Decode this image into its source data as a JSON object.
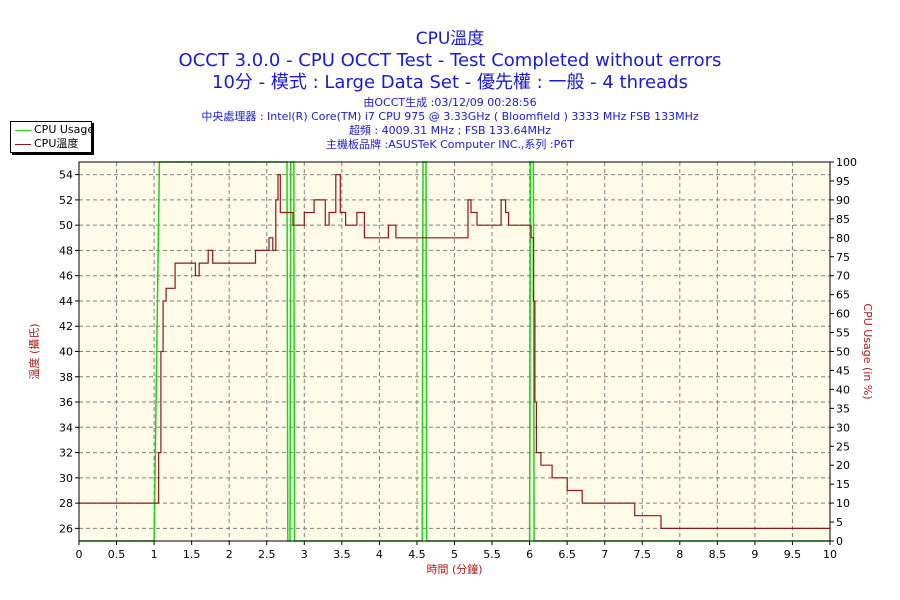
{
  "header": {
    "title": "CPU溫度",
    "subtitle1": "OCCT 3.0.0 - CPU OCCT Test - Test Completed without errors",
    "subtitle2": "10分 - 模式 : Large Data Set - 優先權 : 一般 - 4 threads",
    "info": [
      "由OCCT生成 :03/12/09 00:28:56",
      "中央處理器 : Intel(R) Core(TM) i7 CPU 975 @ 3.33GHz ( Bloomfield ) 3333 MHz FSB 133MHz",
      "超頻 : 4009.31 MHz ; FSB 133.64MHz",
      "主機板品牌 :ASUSTeK Computer INC.,系列 :P6T"
    ]
  },
  "colors": {
    "title": "#1a1ad0",
    "plot_bg": "#fffbe8",
    "temp_line": "#8b1a1a",
    "usage_line": "#1ed21e",
    "axis_title": "#aa1d1d",
    "grid": "#808080"
  },
  "chart_data": {
    "type": "line",
    "xlabel": "時間 (分鐘)",
    "ylabel_left": "溫度 (攝氏)",
    "ylabel_right": "CPU Usage (in %)",
    "xlim": [
      0,
      10
    ],
    "ylim_left": [
      25,
      55
    ],
    "ylim_right": [
      0,
      100
    ],
    "x_ticks": [
      "0",
      "0.5",
      "1",
      "1.5",
      "2",
      "2.5",
      "3",
      "3.5",
      "4",
      "4.5",
      "5",
      "5.5",
      "6",
      "6.5",
      "7",
      "7.5",
      "8",
      "8.5",
      "9",
      "9.5",
      "10"
    ],
    "y_left_ticks": [
      "26",
      "28",
      "30",
      "32",
      "34",
      "36",
      "38",
      "40",
      "42",
      "44",
      "46",
      "48",
      "50",
      "52",
      "54"
    ],
    "y_right_ticks": [
      "0",
      "5",
      "10",
      "15",
      "20",
      "25",
      "30",
      "35",
      "40",
      "45",
      "50",
      "55",
      "60",
      "65",
      "70",
      "75",
      "80",
      "85",
      "90",
      "95",
      "100"
    ],
    "grid": true,
    "legend_position": "top-left",
    "series": [
      {
        "name": "CPU Usage",
        "axis": "right",
        "x": [
          0,
          1.0,
          1.07,
          1.08,
          2.77,
          2.78,
          2.81,
          2.82,
          2.86,
          2.87,
          4.57,
          4.58,
          4.62,
          4.63,
          6.0,
          6.01,
          6.05,
          6.06,
          10
        ],
        "y": [
          0,
          0,
          100,
          100,
          100,
          0,
          0,
          100,
          100,
          0,
          0,
          100,
          100,
          0,
          0,
          100,
          100,
          0,
          0
        ]
      },
      {
        "name": "CPU溫度",
        "axis": "left",
        "x": [
          0,
          1.05,
          1.06,
          1.09,
          1.12,
          1.16,
          1.2,
          1.28,
          1.35,
          1.55,
          1.6,
          1.65,
          1.72,
          1.78,
          2.25,
          2.35,
          2.45,
          2.53,
          2.58,
          2.62,
          2.65,
          2.68,
          2.72,
          2.85,
          2.9,
          3.0,
          3.1,
          3.13,
          3.22,
          3.28,
          3.33,
          3.42,
          3.48,
          3.55,
          3.6,
          3.7,
          3.8,
          3.85,
          4.12,
          4.18,
          4.22,
          4.25,
          5.12,
          5.18,
          5.22,
          5.3,
          5.32,
          5.58,
          5.62,
          5.68,
          5.72,
          6.02,
          6.05,
          6.07,
          6.09,
          6.15,
          6.3,
          6.5,
          6.7,
          6.75,
          7.35,
          7.4,
          7.7,
          7.75,
          10
        ],
        "y": [
          28,
          28,
          32,
          40,
          44,
          45,
          45,
          47,
          47,
          46,
          47,
          47,
          48,
          47,
          47,
          48,
          48,
          49,
          48,
          52,
          54,
          51,
          51,
          50,
          50,
          51,
          51,
          52,
          52,
          50,
          51,
          54,
          51,
          50,
          50,
          51,
          49,
          49,
          50,
          50,
          49,
          49,
          49,
          52,
          51,
          50,
          50,
          50,
          52,
          51,
          50,
          49,
          44,
          36,
          32,
          31,
          30,
          29,
          28,
          28,
          28,
          27,
          27,
          26,
          26
        ]
      }
    ]
  }
}
